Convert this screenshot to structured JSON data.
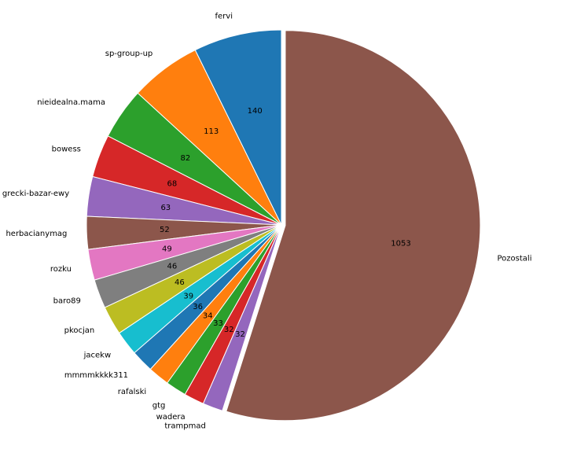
{
  "chart_data": {
    "type": "pie",
    "title": "",
    "start_angle_deg": 90,
    "direction": "counterclockwise",
    "explode_slice": "Pozostali",
    "categories": [
      "fervi",
      "sp-group-up",
      "nieidealna.mama",
      "bowess",
      "grecki-bazar-ewy",
      "herbacianymag",
      "rozku",
      "baro89",
      "pkocjan",
      "jacekw",
      "mmmmkkkk311",
      "rafalski",
      "gtg",
      "wadera",
      "trampmad",
      "Pozostali"
    ],
    "values": [
      140,
      113,
      82,
      68,
      63,
      52,
      49,
      46,
      46,
      39,
      36,
      34,
      33,
      32,
      32,
      1053
    ],
    "value_labels": [
      "140",
      "113",
      "82",
      "68",
      "63",
      "52",
      "49",
      "46",
      "46",
      "39",
      "36",
      "34",
      "33",
      "32",
      "32",
      "1053"
    ],
    "colors": [
      "#1f77b4",
      "#ff7f0e",
      "#2ca02c",
      "#d62728",
      "#9467bd",
      "#8c564b",
      "#e377c2",
      "#7f7f7f",
      "#bcbd22",
      "#17becf",
      "#1f77b4",
      "#ff7f0e",
      "#2ca02c",
      "#d62728",
      "#9467bd",
      "#8c564b"
    ]
  }
}
